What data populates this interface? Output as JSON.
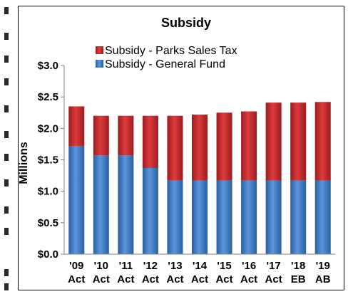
{
  "chart_data": {
    "type": "bar",
    "stacked": true,
    "title": "Subsidy",
    "xlabel": "",
    "ylabel": "Millions",
    "ylim": [
      0,
      3.0
    ],
    "yticks": [
      "$0.0",
      "$0.5",
      "$1.0",
      "$1.5",
      "$2.0",
      "$2.5",
      "$3.0"
    ],
    "categories": [
      [
        "'09",
        "Act"
      ],
      [
        "'10",
        "Act"
      ],
      [
        "'11",
        "Act"
      ],
      [
        "'12",
        "Act"
      ],
      [
        "'13",
        "Act"
      ],
      [
        "'14",
        "Act"
      ],
      [
        "'15",
        "Act"
      ],
      [
        "'16",
        "Act"
      ],
      [
        "'17",
        "Act"
      ],
      [
        "'18",
        "EB"
      ],
      [
        "'19",
        "AB"
      ]
    ],
    "series": [
      {
        "name": "Subsidy - General Fund",
        "color": "#3b78c4",
        "values": [
          1.72,
          1.57,
          1.57,
          1.37,
          1.17,
          1.17,
          1.17,
          1.17,
          1.17,
          1.17,
          1.17
        ]
      },
      {
        "name": "Subsidy - Parks Sales Tax",
        "color": "#c1272d",
        "values": [
          0.63,
          0.63,
          0.63,
          0.83,
          1.03,
          1.05,
          1.08,
          1.1,
          1.24,
          1.24,
          1.25
        ]
      }
    ],
    "legend_order": [
      "Subsidy - Parks Sales Tax",
      "Subsidy - General Fund"
    ],
    "legend_position": "top-left",
    "grid": false
  }
}
